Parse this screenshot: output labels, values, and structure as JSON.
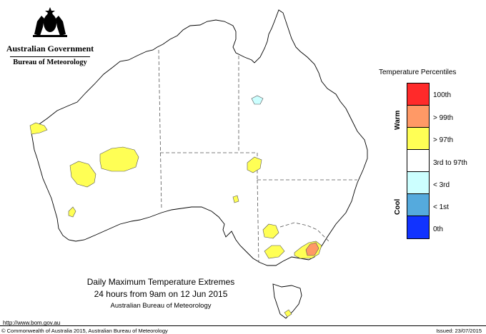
{
  "logo": {
    "government": "Australian Government",
    "bureau": "Bureau of Meteorology"
  },
  "legend": {
    "title": "Temperature Percentiles",
    "warm_label": "Warm",
    "cool_label": "Cool",
    "items": [
      {
        "label": "100th",
        "color": "#ff2a2a"
      },
      {
        "label": "> 99th",
        "color": "#ff9966"
      },
      {
        "label": "> 97th",
        "color": "#ffff55"
      },
      {
        "label": "3rd to 97th",
        "color": "#ffffff"
      },
      {
        "label": "< 3rd",
        "color": "#ccffff"
      },
      {
        "label": "< 1st",
        "color": "#55aadd"
      },
      {
        "label": "0th",
        "color": "#1133ff"
      }
    ]
  },
  "title": {
    "line1": "Daily Maximum Temperature Extremes",
    "line2": "24 hours from 9am on 12 Jun 2015",
    "line3": "Australian Bureau of Meteorology"
  },
  "footer": {
    "url": "http://www.bom.gov.au",
    "copyright": "© Commonwealth of Australia 2015, Australian Bureau of Meteorology",
    "issued": "Issued: 23/07/2015"
  },
  "map_regions": [
    {
      "category": "> 97th",
      "location": "Western Australia north coast"
    },
    {
      "category": "> 97th",
      "location": "Western Australia interior (Gibson Desert)"
    },
    {
      "category": "> 97th",
      "location": "Western Australia central"
    },
    {
      "category": "> 97th",
      "location": "Western Australia south-west"
    },
    {
      "category": "< 3rd",
      "location": "Gulf of Carpentaria coast, Queensland"
    },
    {
      "category": "> 97th",
      "location": "South Australia north-east"
    },
    {
      "category": "> 97th",
      "location": "Victoria north-west"
    },
    {
      "category": "> 97th",
      "location": "Victoria west"
    },
    {
      "category": "> 97th",
      "location": "Victoria east / southern NSW"
    },
    {
      "category": "> 99th",
      "location": "Victoria east / southern NSW"
    },
    {
      "category": "> 97th",
      "location": "Tasmania"
    }
  ]
}
